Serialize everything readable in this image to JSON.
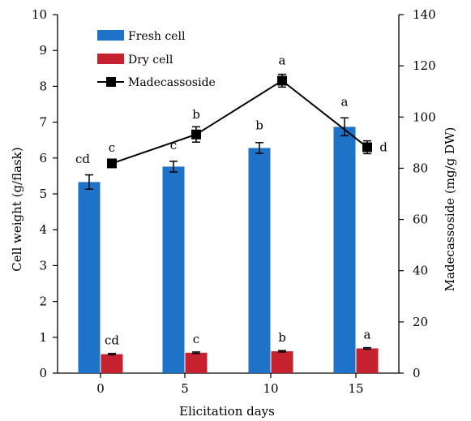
{
  "chart_data": {
    "type": "bar",
    "xlabel": "Elicitation days",
    "ylabel": "Cell weight (g/flask)",
    "y2label": "Madecassoside (mg/g DW)",
    "categories": [
      "0",
      "5",
      "10",
      "15"
    ],
    "ylim": [
      0,
      10
    ],
    "y2lim": [
      0,
      140
    ],
    "yticks": [
      "0",
      "1",
      "2",
      "3",
      "4",
      "5",
      "6",
      "7",
      "8",
      "9",
      "10"
    ],
    "y2ticks": [
      "0",
      "20",
      "40",
      "60",
      "80",
      "100",
      "120",
      "140"
    ],
    "legend_position": "top-left",
    "series": [
      {
        "name": "Fresh cell",
        "type": "bar",
        "axis": "left",
        "color": "#1e73c9",
        "values": [
          5.33,
          5.76,
          6.28,
          6.87
        ],
        "errors": [
          0.2,
          0.15,
          0.15,
          0.25
        ],
        "labels": [
          "cd",
          "c",
          "b",
          "a"
        ]
      },
      {
        "name": "Dry cell",
        "type": "bar",
        "axis": "left",
        "color": "#c5212f",
        "values": [
          0.53,
          0.57,
          0.61,
          0.69
        ],
        "errors": [
          0.02,
          0.02,
          0.02,
          0.02
        ],
        "labels": [
          "cd",
          "c",
          "b",
          "a"
        ]
      },
      {
        "name": "Madecassoside",
        "type": "line",
        "axis": "right",
        "color": "#000000",
        "values": [
          81.9,
          93.2,
          114.2,
          88.2
        ],
        "errors": [
          1.5,
          3.0,
          2.5,
          2.5
        ],
        "labels": [
          "c",
          "b",
          "a",
          "d"
        ]
      }
    ]
  }
}
